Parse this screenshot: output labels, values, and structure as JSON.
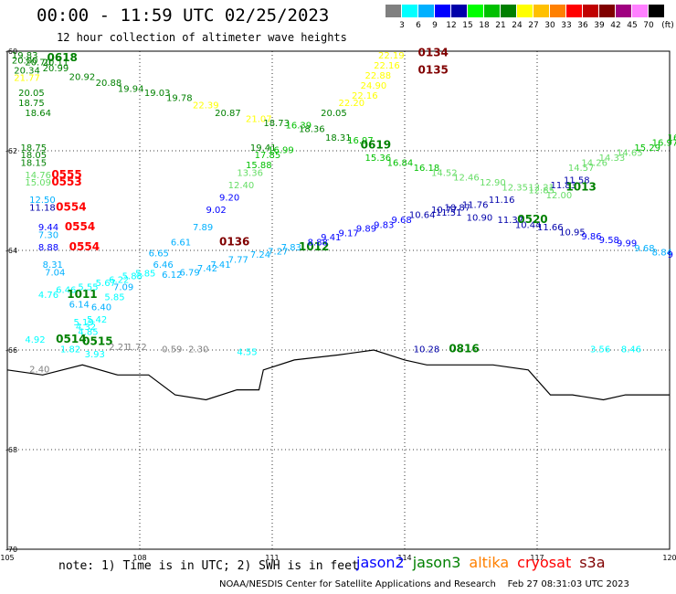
{
  "header": {
    "title": "00:00 - 11:59 UTC 02/25/2023",
    "subtitle": "12 hour collection of altimeter wave heights"
  },
  "legend": {
    "unit": "(ft)",
    "colors": [
      "#808080",
      "#00ffff",
      "#00b0ff",
      "#0000ff",
      "#0000aa",
      "#00ff00",
      "#00c000",
      "#008000",
      "#ffff00",
      "#ffc000",
      "#ff8000",
      "#ff0000",
      "#c00000",
      "#800000",
      "#a00080",
      "#ff80ff",
      "#000000"
    ],
    "labels": [
      "3",
      "6",
      "9",
      "12",
      "15",
      "18",
      "21",
      "24",
      "27",
      "30",
      "33",
      "36",
      "39",
      "42",
      "45",
      "70"
    ]
  },
  "map": {
    "lon_labels": [
      "105",
      "108",
      "111",
      "114",
      "117",
      "120"
    ],
    "lat_labels": [
      "-60",
      "-62",
      "-64",
      "-66",
      "-68",
      "-70"
    ],
    "lon_range": [
      -105,
      -120
    ],
    "lat_range": [
      -60,
      -70
    ],
    "coastline": [
      [
        -105,
        -66.4
      ],
      [
        -105.8,
        -66.5
      ],
      [
        -106.7,
        -66.3
      ],
      [
        -107.5,
        -66.5
      ],
      [
        -108.2,
        -66.5
      ],
      [
        -108.8,
        -66.9
      ],
      [
        -109.5,
        -67.0
      ],
      [
        -110.2,
        -66.8
      ],
      [
        -110.7,
        -66.8
      ],
      [
        -110.8,
        -66.4
      ],
      [
        -111.5,
        -66.2
      ],
      [
        -112.5,
        -66.1
      ],
      [
        -113.3,
        -66.0
      ],
      [
        -114.0,
        -66.2
      ],
      [
        -114.5,
        -66.3
      ],
      [
        -115.0,
        -66.3
      ],
      [
        -116.0,
        -66.3
      ],
      [
        -116.8,
        -66.4
      ],
      [
        -117.3,
        -66.9
      ],
      [
        -117.8,
        -66.9
      ],
      [
        -118.5,
        -67.0
      ],
      [
        -119.0,
        -66.9
      ],
      [
        -120.0,
        -66.9
      ]
    ],
    "labels": [
      {
        "lon": -105.1,
        "lat": -60.15,
        "text": "19.83",
        "color": "#008000"
      },
      {
        "lon": -105.1,
        "lat": -60.25,
        "text": "20.00",
        "color": "#008000"
      },
      {
        "lon": -105.4,
        "lat": -60.28,
        "text": "20.70",
        "color": "#008000"
      },
      {
        "lon": -105.8,
        "lat": -60.28,
        "text": "20.11",
        "color": "#008000"
      },
      {
        "lon": -105.9,
        "lat": -60.2,
        "text": "0618",
        "color": "#008000",
        "big": true
      },
      {
        "lon": -105.15,
        "lat": -60.45,
        "text": "20.34",
        "color": "#008000"
      },
      {
        "lon": -105.8,
        "lat": -60.4,
        "text": "20.99",
        "color": "#008000"
      },
      {
        "lon": -105.15,
        "lat": -60.6,
        "text": "21.77",
        "color": "#ffff00"
      },
      {
        "lon": -106.4,
        "lat": -60.58,
        "text": "20.92",
        "color": "#008000"
      },
      {
        "lon": -107.0,
        "lat": -60.7,
        "text": "20.88",
        "color": "#008000"
      },
      {
        "lon": -107.5,
        "lat": -60.82,
        "text": "19.94",
        "color": "#008000"
      },
      {
        "lon": -108.1,
        "lat": -60.9,
        "text": "19.03",
        "color": "#008000"
      },
      {
        "lon": -105.25,
        "lat": -60.9,
        "text": "20.05",
        "color": "#008000"
      },
      {
        "lon": -105.25,
        "lat": -61.1,
        "text": "18.75",
        "color": "#008000"
      },
      {
        "lon": -105.4,
        "lat": -61.3,
        "text": "18.64",
        "color": "#008000"
      },
      {
        "lon": -108.6,
        "lat": -61.0,
        "text": "19.78",
        "color": "#008000"
      },
      {
        "lon": -109.2,
        "lat": -61.15,
        "text": "22.39",
        "color": "#ffff00"
      },
      {
        "lon": -109.7,
        "lat": -61.3,
        "text": "20.87",
        "color": "#008000"
      },
      {
        "lon": -110.4,
        "lat": -61.42,
        "text": "21.07",
        "color": "#ffff00"
      },
      {
        "lon": -110.8,
        "lat": -61.5,
        "text": "18.73",
        "color": "#008000"
      },
      {
        "lon": -111.3,
        "lat": -61.55,
        "text": "16.39",
        "color": "#00c000"
      },
      {
        "lon": -111.6,
        "lat": -61.62,
        "text": "18.36",
        "color": "#008000"
      },
      {
        "lon": -112.2,
        "lat": -61.8,
        "text": "18.31",
        "color": "#008000"
      },
      {
        "lon": -112.7,
        "lat": -61.85,
        "text": "16.97",
        "color": "#00c000"
      },
      {
        "lon": -112.1,
        "lat": -61.3,
        "text": "20.05",
        "color": "#008000"
      },
      {
        "lon": -112.5,
        "lat": -61.1,
        "text": "22.20",
        "color": "#ffff00"
      },
      {
        "lon": -112.8,
        "lat": -60.95,
        "text": "22.16",
        "color": "#ffff00"
      },
      {
        "lon": -113.0,
        "lat": -60.75,
        "text": "24.90",
        "color": "#ffff00"
      },
      {
        "lon": -113.1,
        "lat": -60.55,
        "text": "22.88",
        "color": "#ffff00"
      },
      {
        "lon": -113.3,
        "lat": -60.35,
        "text": "22.16",
        "color": "#ffff00"
      },
      {
        "lon": -113.4,
        "lat": -60.15,
        "text": "22.19",
        "color": "#ffff00"
      },
      {
        "lon": -114.3,
        "lat": -60.1,
        "text": "0134",
        "color": "#800000",
        "big": true
      },
      {
        "lon": -114.3,
        "lat": -60.45,
        "text": "0135",
        "color": "#800000",
        "big": true
      },
      {
        "lon": -110.5,
        "lat": -62.0,
        "text": "19.41",
        "color": "#008000"
      },
      {
        "lon": -110.9,
        "lat": -62.05,
        "text": "16.99",
        "color": "#00c000"
      },
      {
        "lon": -113.0,
        "lat": -61.95,
        "text": "0619",
        "color": "#008000",
        "big": true
      },
      {
        "lon": -113.1,
        "lat": -62.2,
        "text": "15.36",
        "color": "#00c000"
      },
      {
        "lon": -113.6,
        "lat": -62.3,
        "text": "16.84",
        "color": "#00c000"
      },
      {
        "lon": -114.2,
        "lat": -62.4,
        "text": "16.18",
        "color": "#00c000"
      },
      {
        "lon": -114.6,
        "lat": -62.5,
        "text": "14.52",
        "color": "#66dd66"
      },
      {
        "lon": -115.1,
        "lat": -62.6,
        "text": "12.46",
        "color": "#66dd66"
      },
      {
        "lon": -115.7,
        "lat": -62.7,
        "text": "12.90",
        "color": "#66dd66"
      },
      {
        "lon": -116.2,
        "lat": -62.8,
        "text": "12.35",
        "color": "#66dd66"
      },
      {
        "lon": -116.8,
        "lat": -62.85,
        "text": "12.85",
        "color": "#66dd66"
      },
      {
        "lon": -117.2,
        "lat": -62.95,
        "text": "12.00",
        "color": "#66dd66"
      },
      {
        "lon": -105.3,
        "lat": -62.0,
        "text": "18.75",
        "color": "#008000"
      },
      {
        "lon": -105.3,
        "lat": -62.15,
        "text": "18.05",
        "color": "#008000"
      },
      {
        "lon": -105.3,
        "lat": -62.3,
        "text": "18.15",
        "color": "#008000"
      },
      {
        "lon": -105.4,
        "lat": -62.55,
        "text": "14.76",
        "color": "#66dd66"
      },
      {
        "lon": -105.4,
        "lat": -62.7,
        "text": "15.09",
        "color": "#66dd66"
      },
      {
        "lon": -106.0,
        "lat": -62.55,
        "text": "0555",
        "color": "#ff0000",
        "big": true
      },
      {
        "lon": -106.0,
        "lat": -62.7,
        "text": "0553",
        "color": "#ff0000",
        "big": true
      },
      {
        "lon": -105.5,
        "lat": -63.05,
        "text": "12.50",
        "color": "#00b0ff"
      },
      {
        "lon": -105.5,
        "lat": -63.2,
        "text": "11.18",
        "color": "#0000aa"
      },
      {
        "lon": -106.1,
        "lat": -63.2,
        "text": "0554",
        "color": "#ff0000",
        "big": true
      },
      {
        "lon": -105.7,
        "lat": -63.6,
        "text": "9.44",
        "color": "#0000ff"
      },
      {
        "lon": -105.7,
        "lat": -63.75,
        "text": "7.30",
        "color": "#00b0ff"
      },
      {
        "lon": -106.3,
        "lat": -63.6,
        "text": "0554",
        "color": "#ff0000",
        "big": true
      },
      {
        "lon": -105.7,
        "lat": -64.0,
        "text": "8.88",
        "color": "#0000ff"
      },
      {
        "lon": -106.4,
        "lat": -64.0,
        "text": "0554",
        "color": "#ff0000",
        "big": true
      },
      {
        "lon": -105.8,
        "lat": -64.35,
        "text": "8.31",
        "color": "#00b0ff"
      },
      {
        "lon": -105.85,
        "lat": -64.5,
        "text": "7.04",
        "color": "#00b0ff"
      },
      {
        "lon": -105.7,
        "lat": -64.95,
        "text": "4.76",
        "color": "#00ffff"
      },
      {
        "lon": -106.1,
        "lat": -64.85,
        "text": "6.46",
        "color": "#00ffff"
      },
      {
        "lon": -106.35,
        "lat": -64.95,
        "text": "1011",
        "color": "#008000",
        "big": true
      },
      {
        "lon": -106.6,
        "lat": -64.8,
        "text": "5.55",
        "color": "#00ffff"
      },
      {
        "lon": -107.0,
        "lat": -64.72,
        "text": "5.67",
        "color": "#00ffff"
      },
      {
        "lon": -107.3,
        "lat": -64.65,
        "text": "6.22",
        "color": "#00ffff"
      },
      {
        "lon": -107.6,
        "lat": -64.58,
        "text": "5.88",
        "color": "#00ffff"
      },
      {
        "lon": -107.9,
        "lat": -64.52,
        "text": "5.85",
        "color": "#00ffff"
      },
      {
        "lon": -107.4,
        "lat": -64.8,
        "text": "7.09",
        "color": "#00b0ff"
      },
      {
        "lon": -107.2,
        "lat": -65.0,
        "text": "5.85",
        "color": "#00ffff"
      },
      {
        "lon": -106.4,
        "lat": -65.15,
        "text": "6.14",
        "color": "#00b0ff"
      },
      {
        "lon": -106.9,
        "lat": -65.2,
        "text": "6.40",
        "color": "#00b0ff"
      },
      {
        "lon": -106.8,
        "lat": -65.45,
        "text": "5.42",
        "color": "#00ffff"
      },
      {
        "lon": -106.5,
        "lat": -65.5,
        "text": "5.19",
        "color": "#00ffff"
      },
      {
        "lon": -106.55,
        "lat": -65.6,
        "text": "4.32",
        "color": "#00ffff"
      },
      {
        "lon": -106.6,
        "lat": -65.7,
        "text": "4.85",
        "color": "#00ffff"
      },
      {
        "lon": -105.4,
        "lat": -65.85,
        "text": "4.92",
        "color": "#00ffff"
      },
      {
        "lon": -106.1,
        "lat": -65.85,
        "text": "0514",
        "color": "#008000",
        "big": true
      },
      {
        "lon": -106.7,
        "lat": -65.9,
        "text": "0515",
        "color": "#008000",
        "big": true
      },
      {
        "lon": -106.2,
        "lat": -66.05,
        "text": "1.82",
        "color": "#00ffff"
      },
      {
        "lon": -106.75,
        "lat": -66.15,
        "text": "3.93",
        "color": "#00ffff"
      },
      {
        "lon": -107.3,
        "lat": -66.0,
        "text": "2.21",
        "color": "#808080"
      },
      {
        "lon": -107.7,
        "lat": -66.0,
        "text": "1.72",
        "color": "#808080"
      },
      {
        "lon": -105.5,
        "lat": -66.45,
        "text": "2.40",
        "color": "#808080"
      },
      {
        "lon": -108.5,
        "lat": -66.05,
        "text": "0.59",
        "color": "#808080"
      },
      {
        "lon": -109.1,
        "lat": -66.05,
        "text": "2.30",
        "color": "#808080"
      },
      {
        "lon": -110.2,
        "lat": -66.1,
        "text": "4.55",
        "color": "#00ffff"
      },
      {
        "lon": -108.2,
        "lat": -64.12,
        "text": "6.65",
        "color": "#00b0ff"
      },
      {
        "lon": -108.3,
        "lat": -64.35,
        "text": "6.46",
        "color": "#00b0ff"
      },
      {
        "lon": -108.5,
        "lat": -64.55,
        "text": "6.12",
        "color": "#00b0ff"
      },
      {
        "lon": -108.9,
        "lat": -64.5,
        "text": "6.79",
        "color": "#00b0ff"
      },
      {
        "lon": -109.3,
        "lat": -64.42,
        "text": "7.42",
        "color": "#00b0ff"
      },
      {
        "lon": -109.6,
        "lat": -64.35,
        "text": "7.41",
        "color": "#00b0ff"
      },
      {
        "lon": -110.0,
        "lat": -64.25,
        "text": "7.77",
        "color": "#00b0ff"
      },
      {
        "lon": -110.5,
        "lat": -64.15,
        "text": "7.24",
        "color": "#00b0ff"
      },
      {
        "lon": -110.9,
        "lat": -64.08,
        "text": "7.27",
        "color": "#00b0ff"
      },
      {
        "lon": -111.2,
        "lat": -64.0,
        "text": "7.83",
        "color": "#00b0ff"
      },
      {
        "lon": -111.6,
        "lat": -64.0,
        "text": "1012",
        "color": "#008000",
        "big": true
      },
      {
        "lon": -111.8,
        "lat": -63.9,
        "text": "8.88",
        "color": "#0000ff"
      },
      {
        "lon": -112.1,
        "lat": -63.8,
        "text": "9.41",
        "color": "#0000ff"
      },
      {
        "lon": -112.5,
        "lat": -63.72,
        "text": "9.17",
        "color": "#0000ff"
      },
      {
        "lon": -112.9,
        "lat": -63.62,
        "text": "9.89",
        "color": "#0000ff"
      },
      {
        "lon": -113.3,
        "lat": -63.55,
        "text": "9.83",
        "color": "#0000ff"
      },
      {
        "lon": -113.7,
        "lat": -63.45,
        "text": "9.68",
        "color": "#0000ff"
      },
      {
        "lon": -114.1,
        "lat": -63.35,
        "text": "10.64",
        "color": "#0000aa"
      },
      {
        "lon": -114.6,
        "lat": -63.25,
        "text": "10.77",
        "color": "#0000aa"
      },
      {
        "lon": -114.9,
        "lat": -63.2,
        "text": "10.87",
        "color": "#0000aa"
      },
      {
        "lon": -115.3,
        "lat": -63.15,
        "text": "11.76",
        "color": "#0000aa"
      },
      {
        "lon": -115.9,
        "lat": -63.05,
        "text": "11.16",
        "color": "#0000aa"
      },
      {
        "lon": -114.7,
        "lat": -63.3,
        "text": "11.51",
        "color": "#0000aa"
      },
      {
        "lon": -115.4,
        "lat": -63.4,
        "text": "10.90",
        "color": "#0000aa"
      },
      {
        "lon": -116.1,
        "lat": -63.45,
        "text": "11.37",
        "color": "#0000aa"
      },
      {
        "lon": -116.5,
        "lat": -63.55,
        "text": "10.44",
        "color": "#0000aa"
      },
      {
        "lon": -117.0,
        "lat": -63.6,
        "text": "11.66",
        "color": "#0000aa"
      },
      {
        "lon": -116.55,
        "lat": -63.45,
        "text": "0520",
        "color": "#008000",
        "big": true
      },
      {
        "lon": -116.8,
        "lat": -62.8,
        "text": "12.21",
        "color": "#66dd66"
      },
      {
        "lon": -117.3,
        "lat": -62.75,
        "text": "11.83",
        "color": "#0000aa"
      },
      {
        "lon": -117.6,
        "lat": -62.65,
        "text": "11.58",
        "color": "#0000aa"
      },
      {
        "lon": -117.65,
        "lat": -62.8,
        "text": "1013",
        "color": "#008000",
        "big": true
      },
      {
        "lon": -117.5,
        "lat": -63.7,
        "text": "10.95",
        "color": "#0000aa"
      },
      {
        "lon": -118.0,
        "lat": -63.78,
        "text": "9.86",
        "color": "#0000ff"
      },
      {
        "lon": -118.4,
        "lat": -63.85,
        "text": "9.58",
        "color": "#0000ff"
      },
      {
        "lon": -118.8,
        "lat": -63.92,
        "text": "9.99",
        "color": "#0000ff"
      },
      {
        "lon": -119.2,
        "lat": -64.02,
        "text": "9.68",
        "color": "#00b0ff"
      },
      {
        "lon": -119.6,
        "lat": -64.1,
        "text": "8.84",
        "color": "#00b0ff"
      },
      {
        "lon": -119.95,
        "lat": -64.15,
        "text": "9",
        "color": "#0000ff"
      },
      {
        "lon": -117.7,
        "lat": -62.4,
        "text": "14.57",
        "color": "#66dd66"
      },
      {
        "lon": -118.0,
        "lat": -62.3,
        "text": "14.26",
        "color": "#66dd66"
      },
      {
        "lon": -118.4,
        "lat": -62.2,
        "text": "14.33",
        "color": "#66dd66"
      },
      {
        "lon": -118.8,
        "lat": -62.1,
        "text": "14.65",
        "color": "#66dd66"
      },
      {
        "lon": -119.2,
        "lat": -62.0,
        "text": "15.29",
        "color": "#00c000"
      },
      {
        "lon": -119.6,
        "lat": -61.9,
        "text": "16.97",
        "color": "#00c000"
      },
      {
        "lon": -119.95,
        "lat": -61.8,
        "text": "16.1",
        "color": "#00c000"
      },
      {
        "lon": -110.6,
        "lat": -62.15,
        "text": "17.85",
        "color": "#00c000"
      },
      {
        "lon": -110.4,
        "lat": -62.35,
        "text": "15.88",
        "color": "#00c000"
      },
      {
        "lon": -110.2,
        "lat": -62.5,
        "text": "13.36",
        "color": "#66dd66"
      },
      {
        "lon": -110.0,
        "lat": -62.75,
        "text": "12.40",
        "color": "#66dd66"
      },
      {
        "lon": -109.8,
        "lat": -63.0,
        "text": "9.20",
        "color": "#0000ff"
      },
      {
        "lon": -109.5,
        "lat": -63.25,
        "text": "9.02",
        "color": "#0000ff"
      },
      {
        "lon": -109.2,
        "lat": -63.6,
        "text": "7.89",
        "color": "#00b0ff"
      },
      {
        "lon": -108.7,
        "lat": -63.9,
        "text": "6.61",
        "color": "#00b0ff"
      },
      {
        "lon": -109.8,
        "lat": -63.9,
        "text": "0136",
        "color": "#800000",
        "big": true
      },
      {
        "lon": -114.2,
        "lat": -66.05,
        "text": "10.28",
        "color": "#0000aa"
      },
      {
        "lon": -115.0,
        "lat": -66.05,
        "text": "0816",
        "color": "#008000",
        "big": true
      },
      {
        "lon": -118.2,
        "lat": -66.05,
        "text": "3.56",
        "color": "#00ffff"
      },
      {
        "lon": -118.9,
        "lat": -66.05,
        "text": "8.46",
        "color": "#00ffff"
      }
    ]
  },
  "footer": {
    "note": "note: 1) Time is in UTC; 2) SWH is in feet",
    "satellites": [
      {
        "name": "jason2",
        "color": "#0000ff"
      },
      {
        "name": "jason3",
        "color": "#008000"
      },
      {
        "name": "altika",
        "color": "#ff8000"
      },
      {
        "name": "cryosat",
        "color": "#ff0000"
      },
      {
        "name": "s3a",
        "color": "#800000"
      }
    ],
    "credit": "NOAA/NESDIS Center for Satellite Applications and Research    Feb 27 08:31:03 UTC 2023"
  }
}
